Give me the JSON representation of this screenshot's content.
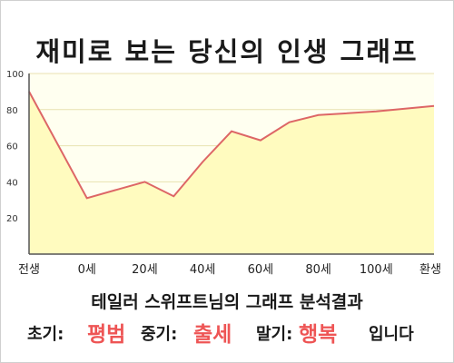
{
  "title": "재미로 보는 당신의 인생 그래프",
  "analysis": {
    "heading": "테일러 스위프트님의 그래프 분석결과",
    "early_label": "초기:",
    "early_value": "평범",
    "middle_label": "중기:",
    "middle_value": "출세",
    "late_label": "말기:",
    "late_value": "행복",
    "ending": "입니다"
  },
  "chart_data": {
    "type": "area",
    "title": "재미로 보는 당신의 인생 그래프",
    "xlabel": "",
    "ylabel": "",
    "x_tick_labels": [
      "전생",
      "0세",
      "20세",
      "40세",
      "60세",
      "80세",
      "100세",
      "환생"
    ],
    "y_ticks": [
      20,
      40,
      60,
      80,
      100
    ],
    "ylim": [
      0,
      100
    ],
    "grid": true,
    "legend": "none",
    "series": [
      {
        "points": [
          {
            "x": "전생",
            "y": 90
          },
          {
            "x": "0세",
            "y": 31
          },
          {
            "x": "20세",
            "y": 40
          },
          {
            "x": "30세",
            "y": 32
          },
          {
            "x": "40세",
            "y": 51
          },
          {
            "x": "50세",
            "y": 68
          },
          {
            "x": "60세",
            "y": 63
          },
          {
            "x": "70세",
            "y": 73
          },
          {
            "x": "80세",
            "y": 77
          },
          {
            "x": "100세",
            "y": 79
          },
          {
            "x": "환생",
            "y": 82
          }
        ]
      }
    ],
    "colors": {
      "line": "#dd6666",
      "fill": "#fffbbf",
      "plot_background": "#fffff0",
      "grid": "#e8e2b0"
    }
  }
}
